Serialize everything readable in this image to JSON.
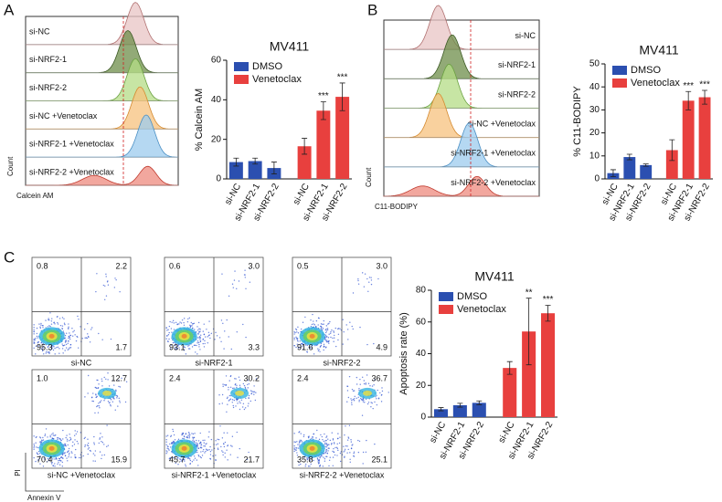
{
  "panels": {
    "a": "A",
    "b": "B",
    "c": "C"
  },
  "histograms": [
    {
      "x_label": "Calcein AM",
      "y_label": "Count",
      "tracks": [
        "si-NC",
        "si-NRF2-1",
        "si-NRF2-2",
        "si-NC +Venetoclax",
        "si-NRF2-1 +Venetoclax",
        "si-NRF2-2 +Venetoclax"
      ]
    },
    {
      "x_label": "C11-BODIPY",
      "y_label": "Count",
      "tracks": [
        "si-NC",
        "si-NRF2-1",
        "si-NRF2-2",
        "si-NC +Venetoclax",
        "si-NRF2-1 +Venetoclax",
        "si-NRF2-2 +Venetoclax"
      ]
    }
  ],
  "flow": {
    "x_label": "Annexin V",
    "y_label": "PI",
    "plots": [
      {
        "label": "si-NC",
        "quadrants": [
          "0.8",
          "2.2",
          "95.3",
          "1.7"
        ]
      },
      {
        "label": "si-NRF2-1",
        "quadrants": [
          "0.6",
          "3.0",
          "93.1",
          "3.3"
        ]
      },
      {
        "label": "si-NRF2-2",
        "quadrants": [
          "0.5",
          "3.0",
          "91.6",
          "4.9"
        ]
      },
      {
        "label": "si-NC +Venetoclax",
        "quadrants": [
          "1.0",
          "12.7",
          "70.4",
          "15.9"
        ]
      },
      {
        "label": "si-NRF2-1 +Venetoclax",
        "quadrants": [
          "2.4",
          "30.2",
          "45.7",
          "21.7"
        ]
      },
      {
        "label": "si-NRF2-2 +Venetoclax",
        "quadrants": [
          "2.4",
          "36.7",
          "35.8",
          "25.1"
        ]
      }
    ]
  },
  "chart_data": [
    {
      "type": "bar",
      "title": "MV411",
      "y_label": "% Calcein AM",
      "categories": [
        "si-NC",
        "si-NRF2-1",
        "si-NRF2-2",
        "si-NC",
        "si-NRF2-1",
        "si-NRF2-2"
      ],
      "series": [
        {
          "name": "DMSO",
          "color": "#2b4fb0",
          "values": [
            8.5,
            9,
            5.5,
            null,
            null,
            null
          ],
          "errors": [
            2,
            1.5,
            3,
            null,
            null,
            null
          ],
          "annotations": [
            null,
            null,
            null,
            null,
            null,
            null
          ]
        },
        {
          "name": "Venetoclax",
          "color": "#e8403e",
          "values": [
            null,
            null,
            null,
            16.5,
            34.5,
            41.5
          ],
          "errors": [
            null,
            null,
            null,
            4,
            4.5,
            7
          ],
          "annotations": [
            null,
            null,
            null,
            null,
            "***",
            "***"
          ]
        }
      ],
      "ylim": [
        0,
        60
      ],
      "yticks": [
        0,
        20,
        40,
        60
      ],
      "legend": "top-left"
    },
    {
      "type": "bar",
      "title": "MV411",
      "y_label": "% C11-BODIPY",
      "categories": [
        "si-NC",
        "si-NRF2-1",
        "si-NRF2-2",
        "si-NC",
        "si-NRF2-1",
        "si-NRF2-2"
      ],
      "series": [
        {
          "name": "DMSO",
          "color": "#2b4fb0",
          "values": [
            2.5,
            9.5,
            6,
            null,
            null,
            null
          ],
          "errors": [
            1.5,
            1.2,
            0.5,
            null,
            null,
            null
          ],
          "annotations": [
            null,
            null,
            null,
            null,
            null,
            null
          ]
        },
        {
          "name": "Venetoclax",
          "color": "#e8403e",
          "values": [
            null,
            null,
            null,
            12.5,
            34,
            35.5
          ],
          "errors": [
            null,
            null,
            null,
            4.5,
            4,
            3
          ],
          "annotations": [
            null,
            null,
            null,
            null,
            "***",
            "***"
          ]
        }
      ],
      "ylim": [
        0,
        50
      ],
      "yticks": [
        0,
        10,
        20,
        30,
        40,
        50
      ],
      "legend": "top-left"
    },
    {
      "type": "bar",
      "title": "MV411",
      "y_label": "Apoptosis rate (%)",
      "categories": [
        "si-NC",
        "si-NRF2-1",
        "si-NRF2-2",
        "si-NC",
        "si-NRF2-1",
        "si-NRF2-2"
      ],
      "series": [
        {
          "name": "DMSO",
          "color": "#2b4fb0",
          "values": [
            5,
            7.5,
            9,
            null,
            null,
            null
          ],
          "errors": [
            1,
            1.2,
            1.2,
            null,
            null,
            null
          ],
          "annotations": [
            null,
            null,
            null,
            null,
            null,
            null
          ]
        },
        {
          "name": "Venetoclax",
          "color": "#e8403e",
          "values": [
            null,
            null,
            null,
            31,
            54,
            65.5
          ],
          "errors": [
            null,
            null,
            null,
            4,
            21,
            5
          ],
          "annotations": [
            null,
            null,
            null,
            null,
            "**",
            "***"
          ]
        }
      ],
      "ylim": [
        0,
        80
      ],
      "yticks": [
        0,
        20,
        40,
        60,
        80
      ],
      "legend": "top-left"
    }
  ]
}
